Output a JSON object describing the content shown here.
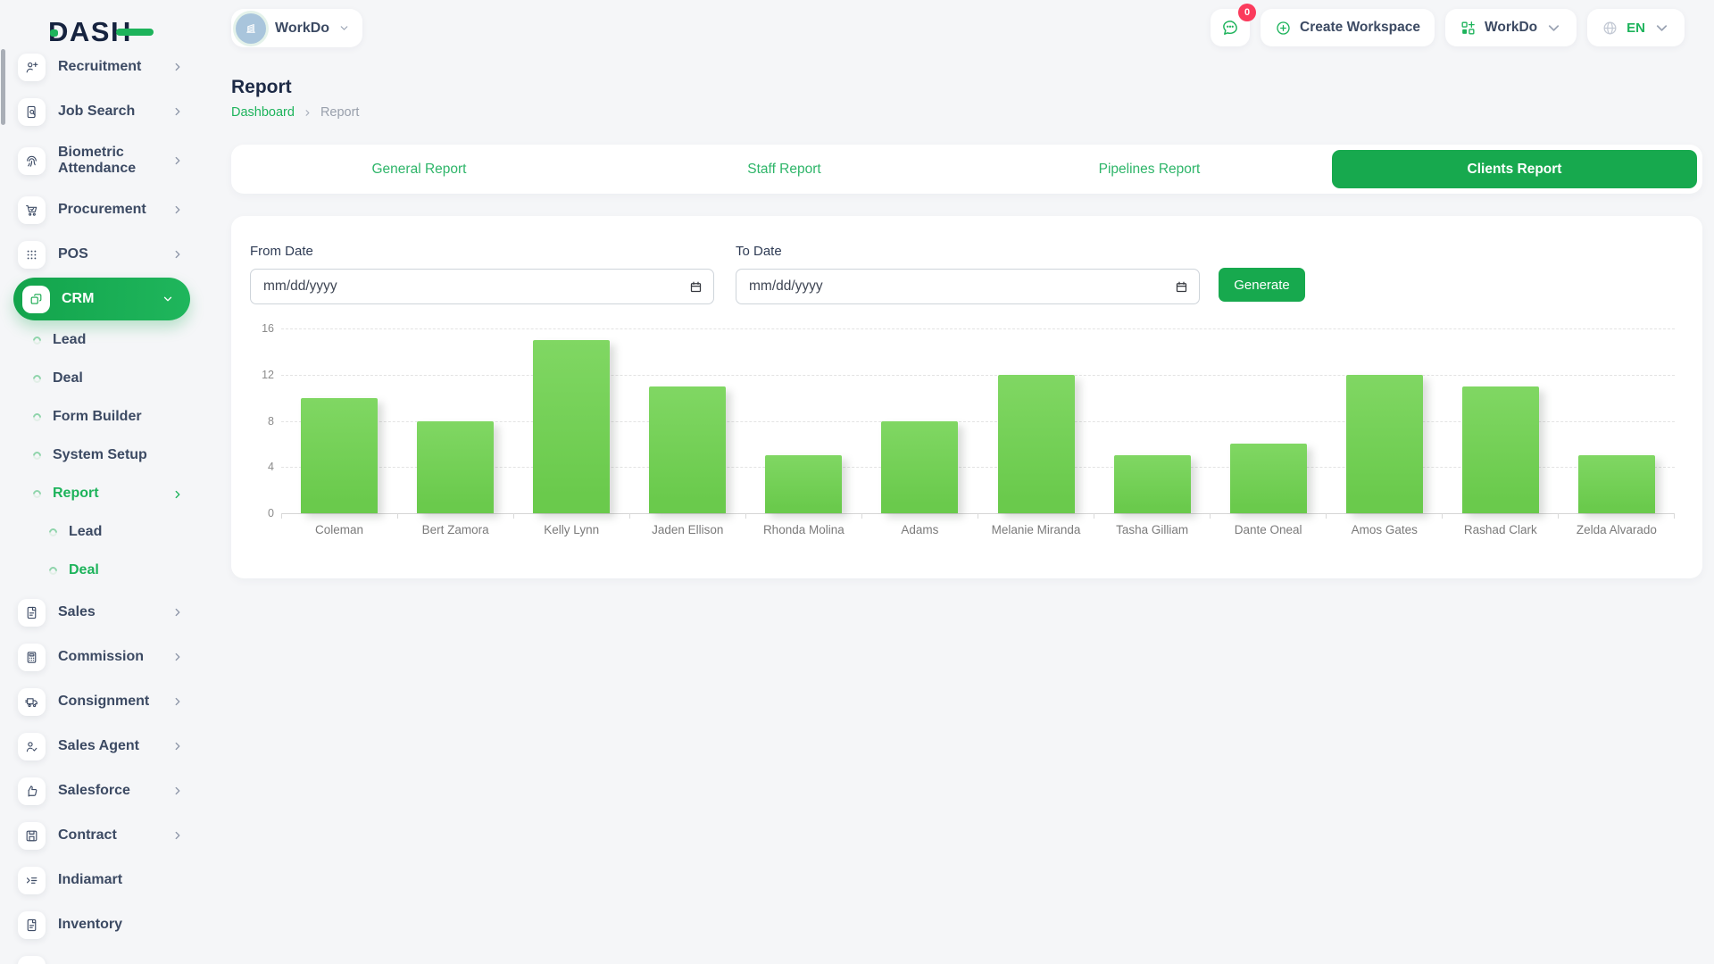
{
  "app": {
    "logo_text": "DASH"
  },
  "colors": {
    "accent": "#1db35b",
    "accent_strong": "#17a94e",
    "bar": "#6fcb50",
    "badge": "#fb3b5c"
  },
  "header": {
    "workspace": {
      "label": "WorkDo"
    },
    "messages": {
      "badge": "0"
    },
    "create_workspace": {
      "label": "Create Workspace"
    },
    "org": {
      "label": "WorkDo"
    },
    "language": {
      "label": "EN"
    }
  },
  "sidebar": {
    "items": [
      {
        "key": "recruitment",
        "label": "Recruitment",
        "icon": "user-plus",
        "level": 0,
        "chevron": "right"
      },
      {
        "key": "job-search",
        "label": "Job Search",
        "icon": "doc-search",
        "level": 0,
        "chevron": "right"
      },
      {
        "key": "biometric-attendance",
        "label": "Biometric Attendance",
        "icon": "fingerprint",
        "level": 0,
        "chevron": "right",
        "tall": true
      },
      {
        "key": "procurement",
        "label": "Procurement",
        "icon": "cart",
        "level": 0,
        "chevron": "right"
      },
      {
        "key": "pos",
        "label": "POS",
        "icon": "grid-dots",
        "level": 0,
        "chevron": "right"
      },
      {
        "key": "crm",
        "label": "CRM",
        "icon": "layers",
        "level": 0,
        "chevron": "down",
        "active": true
      },
      {
        "key": "crm-lead",
        "label": "Lead",
        "level": 1
      },
      {
        "key": "crm-deal",
        "label": "Deal",
        "level": 1
      },
      {
        "key": "form-builder",
        "label": "Form Builder",
        "level": 1
      },
      {
        "key": "system-setup",
        "label": "System Setup",
        "level": 1
      },
      {
        "key": "report",
        "label": "Report",
        "level": 1,
        "chevron": "right",
        "green": true
      },
      {
        "key": "report-lead",
        "label": "Lead",
        "level": 2
      },
      {
        "key": "report-deal",
        "label": "Deal",
        "level": 2,
        "green": true
      },
      {
        "key": "sales",
        "label": "Sales",
        "icon": "file",
        "level": 0,
        "chevron": "right"
      },
      {
        "key": "commission",
        "label": "Commission",
        "icon": "calculator",
        "level": 0,
        "chevron": "right"
      },
      {
        "key": "consignment",
        "label": "Consignment",
        "icon": "truck",
        "level": 0,
        "chevron": "right"
      },
      {
        "key": "sales-agent",
        "label": "Sales Agent",
        "icon": "person-check",
        "level": 0,
        "chevron": "right"
      },
      {
        "key": "salesforce",
        "label": "Salesforce",
        "icon": "thumbs-up",
        "level": 0,
        "chevron": "right"
      },
      {
        "key": "contract",
        "label": "Contract",
        "icon": "floppy",
        "level": 0,
        "chevron": "right"
      },
      {
        "key": "indiamart",
        "label": "Indiamart",
        "icon": "list-chevron",
        "level": 0
      },
      {
        "key": "inventory",
        "label": "Inventory",
        "icon": "file",
        "level": 0
      }
    ]
  },
  "page": {
    "title": "Report",
    "breadcrumb": {
      "home": "Dashboard",
      "current": "Report"
    }
  },
  "tabs": [
    {
      "key": "general-report",
      "label": "General Report",
      "active": false
    },
    {
      "key": "staff-report",
      "label": "Staff Report",
      "active": false
    },
    {
      "key": "pipelines-report",
      "label": "Pipelines Report",
      "active": false
    },
    {
      "key": "clients-report",
      "label": "Clients Report",
      "active": true
    }
  ],
  "filters": {
    "from_label": "From Date",
    "to_label": "To Date",
    "date_placeholder": "mm/dd/yyyy",
    "generate_label": "Generate"
  },
  "chart_data": {
    "type": "bar",
    "categories": [
      "Coleman",
      "Bert Zamora",
      "Kelly Lynn",
      "Jaden Ellison",
      "Rhonda Molina",
      "Adams",
      "Melanie Miranda",
      "Tasha Gilliam",
      "Dante Oneal",
      "Amos Gates",
      "Rashad Clark",
      "Zelda Alvarado"
    ],
    "values": [
      10,
      8,
      15,
      11,
      5,
      8,
      12,
      5,
      6,
      12,
      11,
      5
    ],
    "title": "",
    "xlabel": "",
    "ylabel": "",
    "ylim": [
      0,
      16
    ],
    "yticks": [
      0,
      4,
      8,
      12,
      16
    ],
    "grid": "dashed-horizontal",
    "legend": "none",
    "bar_color": "#6fcb50"
  }
}
